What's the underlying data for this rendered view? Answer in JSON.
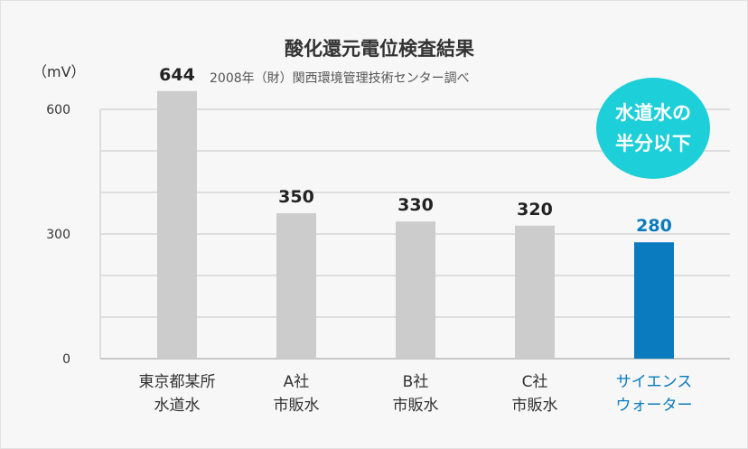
{
  "chart_data": {
    "type": "bar",
    "title": "酸化還元電位検査結果",
    "subtitle": "2008年（財）関西環境管理技術センター調べ",
    "ylabel": "（mV）",
    "ylim": [
      0,
      600
    ],
    "yticks": [
      "0",
      "300",
      "600"
    ],
    "grid": true,
    "categories": [
      [
        "東京都某所",
        "水道水"
      ],
      [
        "A社",
        "市販水"
      ],
      [
        "B社",
        "市販水"
      ],
      [
        "C社",
        "市販水"
      ],
      [
        "サイエンス",
        "ウォーター"
      ]
    ],
    "values": [
      644,
      350,
      330,
      320,
      280
    ],
    "value_labels": [
      "644",
      "350",
      "330",
      "320",
      "280"
    ],
    "colors": [
      "#cccccc",
      "#cccccc",
      "#cccccc",
      "#cccccc",
      "#0a7bbf"
    ],
    "label_colors": [
      "#222222",
      "#222222",
      "#222222",
      "#222222",
      "#0a7bbf"
    ],
    "annotation": [
      "水道水の",
      "半分以下"
    ],
    "annotation_color": "#1dcfd8"
  }
}
